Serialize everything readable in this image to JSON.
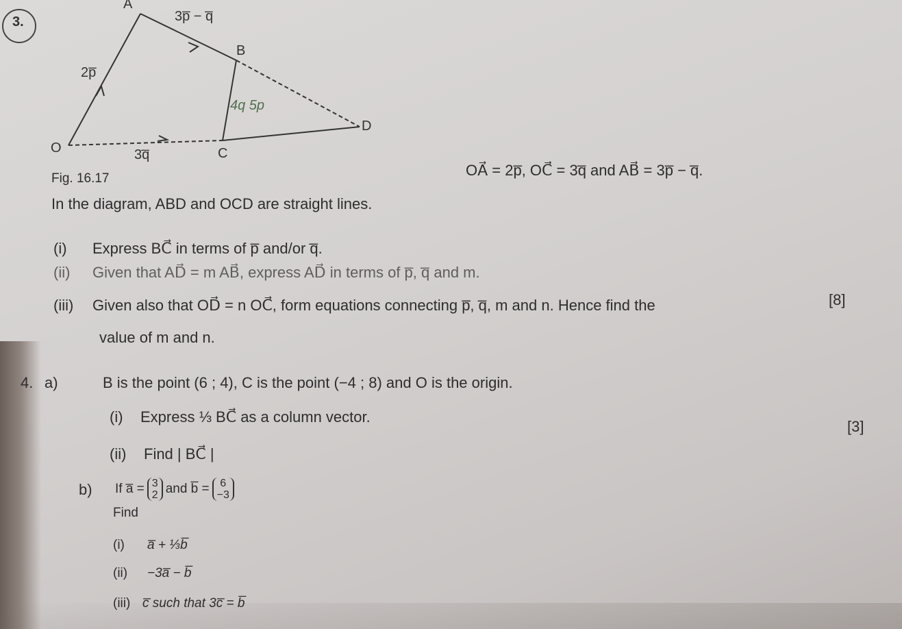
{
  "question_3": {
    "number": "3.",
    "figure": {
      "points": {
        "A": "A",
        "B": "B",
        "C": "C",
        "D": "D",
        "O": "O"
      },
      "edge_labels": [
        "3p̅ − q̅",
        "2p̅",
        "3q̅"
      ],
      "handwriting": "4q 5p"
    },
    "caption": "Fig. 16.17",
    "stem": "In the diagram, ABD and OCD are straight lines.",
    "given": "OA⃗ = 2p̅, OC⃗ = 3q̅ and AB⃗ = 3p̅ − q̅.",
    "parts": [
      {
        "label": "(i)",
        "lines": [
          "Express BC⃗ in terms of p̅ and/or q̅."
        ]
      },
      {
        "label": "(ii)",
        "lines": [
          "Given that AD⃗ = m AB⃗, express AD⃗ in terms of p̅, q̅ and m."
        ]
      },
      {
        "label": "(iii)",
        "lines": [
          "Given also that OD⃗ = n OC⃗, form equations connecting p̅, q̅, m and n. Hence find the",
          "value of m and n."
        ]
      }
    ],
    "marks": "[8]"
  },
  "question_4": {
    "number": "4.",
    "a": {
      "label": "a)",
      "text": "B is the point (6 ; 4), C is the point (−4 ; 8) and O is the origin.",
      "parts": [
        {
          "label": "(i)",
          "text": "Express ⅓ BC⃗ as a column vector."
        },
        {
          "label": "(ii)",
          "text": "Find | BC⃗ |"
        }
      ],
      "marks": "[3]"
    },
    "b": {
      "label": "b)",
      "if": "If a̅ =",
      "a_vector": [
        "3",
        "2"
      ],
      "and": "and b̅ =",
      "b_vector": [
        "6",
        "−3"
      ],
      "find": "Find",
      "parts": [
        {
          "label": "(i)",
          "text": "a̅ + ⅓b̅"
        },
        {
          "label": "(ii)",
          "text": "−3a̅ − b̅"
        },
        {
          "label": "(iii)",
          "text": "c̅ such that 3c̅ = b̅"
        }
      ]
    }
  }
}
